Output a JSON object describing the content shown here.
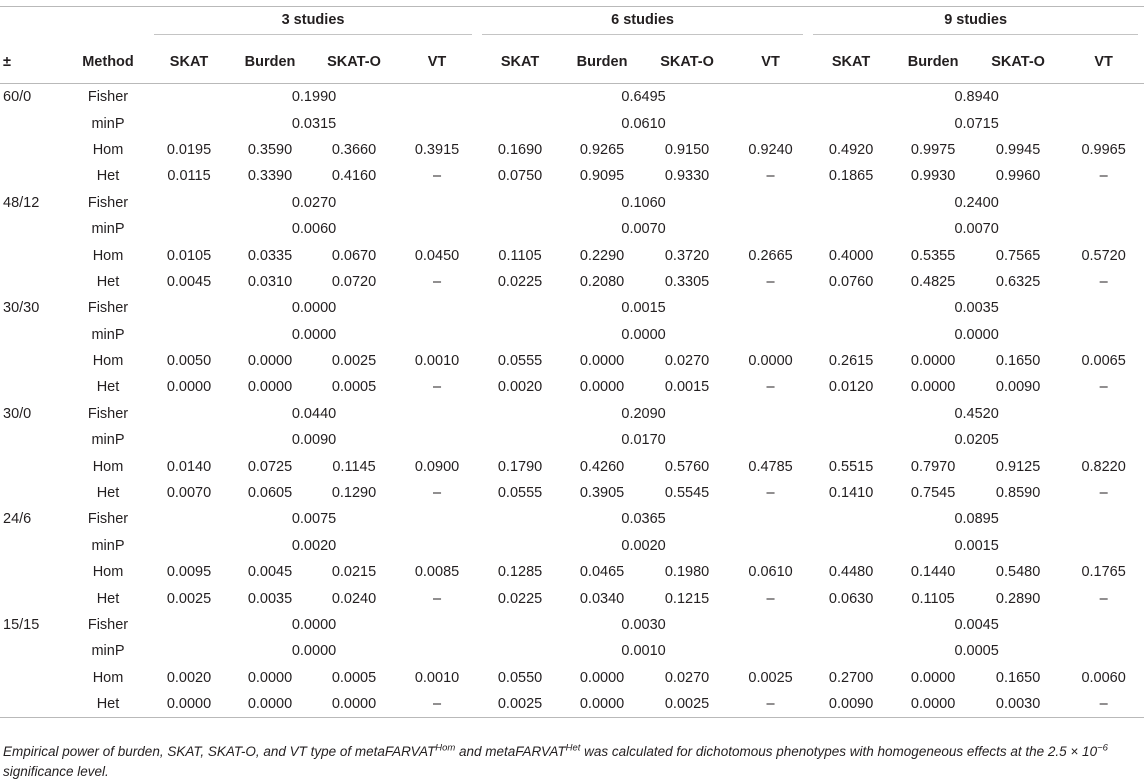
{
  "header": {
    "groups": [
      "3 studies",
      "6 studies",
      "9 studies"
    ],
    "col_pm": "±",
    "col_method": "Method",
    "subcols": [
      "SKAT",
      "Burden",
      "SKAT-O",
      "VT"
    ]
  },
  "rows": [
    {
      "pm": "60/0",
      "method": "Fisher",
      "merged": [
        "0.1990",
        "0.6495",
        "0.8940"
      ]
    },
    {
      "pm": "",
      "method": "minP",
      "merged": [
        "0.0315",
        "0.0610",
        "0.0715"
      ]
    },
    {
      "pm": "",
      "method": "Hom",
      "values": [
        "0.0195",
        "0.3590",
        "0.3660",
        "0.3915",
        "0.1690",
        "0.9265",
        "0.9150",
        "0.9240",
        "0.4920",
        "0.9975",
        "0.9945",
        "0.9965"
      ]
    },
    {
      "pm": "",
      "method": "Het",
      "values": [
        "0.0115",
        "0.3390",
        "0.4160",
        "–",
        "0.0750",
        "0.9095",
        "0.9330",
        "–",
        "0.1865",
        "0.9930",
        "0.9960",
        "–"
      ]
    },
    {
      "pm": "48/12",
      "method": "Fisher",
      "merged": [
        "0.0270",
        "0.1060",
        "0.2400"
      ]
    },
    {
      "pm": "",
      "method": "minP",
      "merged": [
        "0.0060",
        "0.0070",
        "0.0070"
      ]
    },
    {
      "pm": "",
      "method": "Hom",
      "values": [
        "0.0105",
        "0.0335",
        "0.0670",
        "0.0450",
        "0.1105",
        "0.2290",
        "0.3720",
        "0.2665",
        "0.4000",
        "0.5355",
        "0.7565",
        "0.5720"
      ]
    },
    {
      "pm": "",
      "method": "Het",
      "values": [
        "0.0045",
        "0.0310",
        "0.0720",
        "–",
        "0.0225",
        "0.2080",
        "0.3305",
        "–",
        "0.0760",
        "0.4825",
        "0.6325",
        "–"
      ]
    },
    {
      "pm": "30/30",
      "method": "Fisher",
      "merged": [
        "0.0000",
        "0.0015",
        "0.0035"
      ]
    },
    {
      "pm": "",
      "method": "minP",
      "merged": [
        "0.0000",
        "0.0000",
        "0.0000"
      ]
    },
    {
      "pm": "",
      "method": "Hom",
      "values": [
        "0.0050",
        "0.0000",
        "0.0025",
        "0.0010",
        "0.0555",
        "0.0000",
        "0.0270",
        "0.0000",
        "0.2615",
        "0.0000",
        "0.1650",
        "0.0065"
      ]
    },
    {
      "pm": "",
      "method": "Het",
      "values": [
        "0.0000",
        "0.0000",
        "0.0005",
        "–",
        "0.0020",
        "0.0000",
        "0.0015",
        "–",
        "0.0120",
        "0.0000",
        "0.0090",
        "–"
      ]
    },
    {
      "pm": "30/0",
      "method": "Fisher",
      "merged": [
        "0.0440",
        "0.2090",
        "0.4520"
      ]
    },
    {
      "pm": "",
      "method": "minP",
      "merged": [
        "0.0090",
        "0.0170",
        "0.0205"
      ]
    },
    {
      "pm": "",
      "method": "Hom",
      "values": [
        "0.0140",
        "0.0725",
        "0.1145",
        "0.0900",
        "0.1790",
        "0.4260",
        "0.5760",
        "0.4785",
        "0.5515",
        "0.7970",
        "0.9125",
        "0.8220"
      ]
    },
    {
      "pm": "",
      "method": "Het",
      "values": [
        "0.0070",
        "0.0605",
        "0.1290",
        "–",
        "0.0555",
        "0.3905",
        "0.5545",
        "–",
        "0.1410",
        "0.7545",
        "0.8590",
        "–"
      ]
    },
    {
      "pm": "24/6",
      "method": "Fisher",
      "merged": [
        "0.0075",
        "0.0365",
        "0.0895"
      ]
    },
    {
      "pm": "",
      "method": "minP",
      "merged": [
        "0.0020",
        "0.0020",
        "0.0015"
      ]
    },
    {
      "pm": "",
      "method": "Hom",
      "values": [
        "0.0095",
        "0.0045",
        "0.0215",
        "0.0085",
        "0.1285",
        "0.0465",
        "0.1980",
        "0.0610",
        "0.4480",
        "0.1440",
        "0.5480",
        "0.1765"
      ]
    },
    {
      "pm": "",
      "method": "Het",
      "values": [
        "0.0025",
        "0.0035",
        "0.0240",
        "–",
        "0.0225",
        "0.0340",
        "0.1215",
        "–",
        "0.0630",
        "0.1105",
        "0.2890",
        "–"
      ]
    },
    {
      "pm": "15/15",
      "method": "Fisher",
      "merged": [
        "0.0000",
        "0.0030",
        "0.0045"
      ]
    },
    {
      "pm": "",
      "method": "minP",
      "merged": [
        "0.0000",
        "0.0010",
        "0.0005"
      ]
    },
    {
      "pm": "",
      "method": "Hom",
      "values": [
        "0.0020",
        "0.0000",
        "0.0005",
        "0.0010",
        "0.0550",
        "0.0000",
        "0.0270",
        "0.0025",
        "0.2700",
        "0.0000",
        "0.1650",
        "0.0060"
      ]
    },
    {
      "pm": "",
      "method": "Het",
      "values": [
        "0.0000",
        "0.0000",
        "0.0000",
        "–",
        "0.0025",
        "0.0000",
        "0.0025",
        "–",
        "0.0090",
        "0.0000",
        "0.0030",
        "–"
      ]
    }
  ],
  "caption": {
    "part1": "Empirical power of burden, SKAT, SKAT-O, and VT type of metaFARVAT",
    "sup1": "Hom",
    "part2": " and metaFARVAT",
    "sup2": "Het",
    "part3": " was calculated for dichotomous phenotypes with homogeneous effects at the 2.5 × 10",
    "sup3": "−6",
    "part4": " significance level."
  }
}
